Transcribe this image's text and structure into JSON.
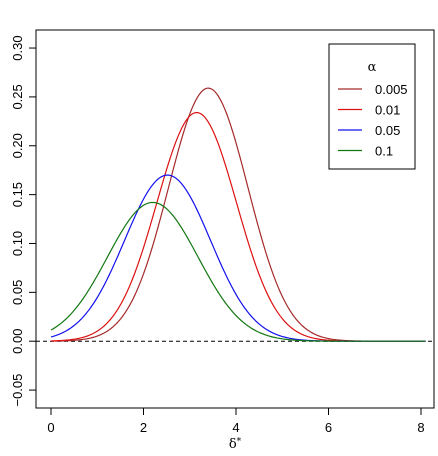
{
  "chart_data": {
    "type": "line",
    "title": "",
    "xlabel": "δ*",
    "ylabel": "",
    "xlim": [
      -0.1,
      8.3
    ],
    "ylim": [
      -0.06,
      0.31
    ],
    "xticks": [
      "0",
      "2",
      "4",
      "6",
      "8"
    ],
    "yticks": [
      "−0.05",
      "0.00",
      "0.05",
      "0.10",
      "0.15",
      "0.20",
      "0.25",
      "0.30"
    ],
    "reference_line": {
      "y": 0,
      "style": "dashed",
      "color": "#000000"
    },
    "legend": {
      "title": "α",
      "position": "top-right"
    },
    "grid": false,
    "series": [
      {
        "name": "0.005",
        "color": "#A52A2A",
        "peak_x": 3.4,
        "peak_y": 0.259,
        "sd": 0.86
      },
      {
        "name": "0.01",
        "color": "#DD1111",
        "peak_x": 3.15,
        "peak_y": 0.234,
        "sd": 0.86
      },
      {
        "name": "0.05",
        "color": "#1111EE",
        "peak_x": 2.52,
        "peak_y": 0.17,
        "sd": 0.93
      },
      {
        "name": "0.1",
        "color": "#117711",
        "peak_x": 2.2,
        "peak_y": 0.142,
        "sd": 0.98
      }
    ]
  }
}
